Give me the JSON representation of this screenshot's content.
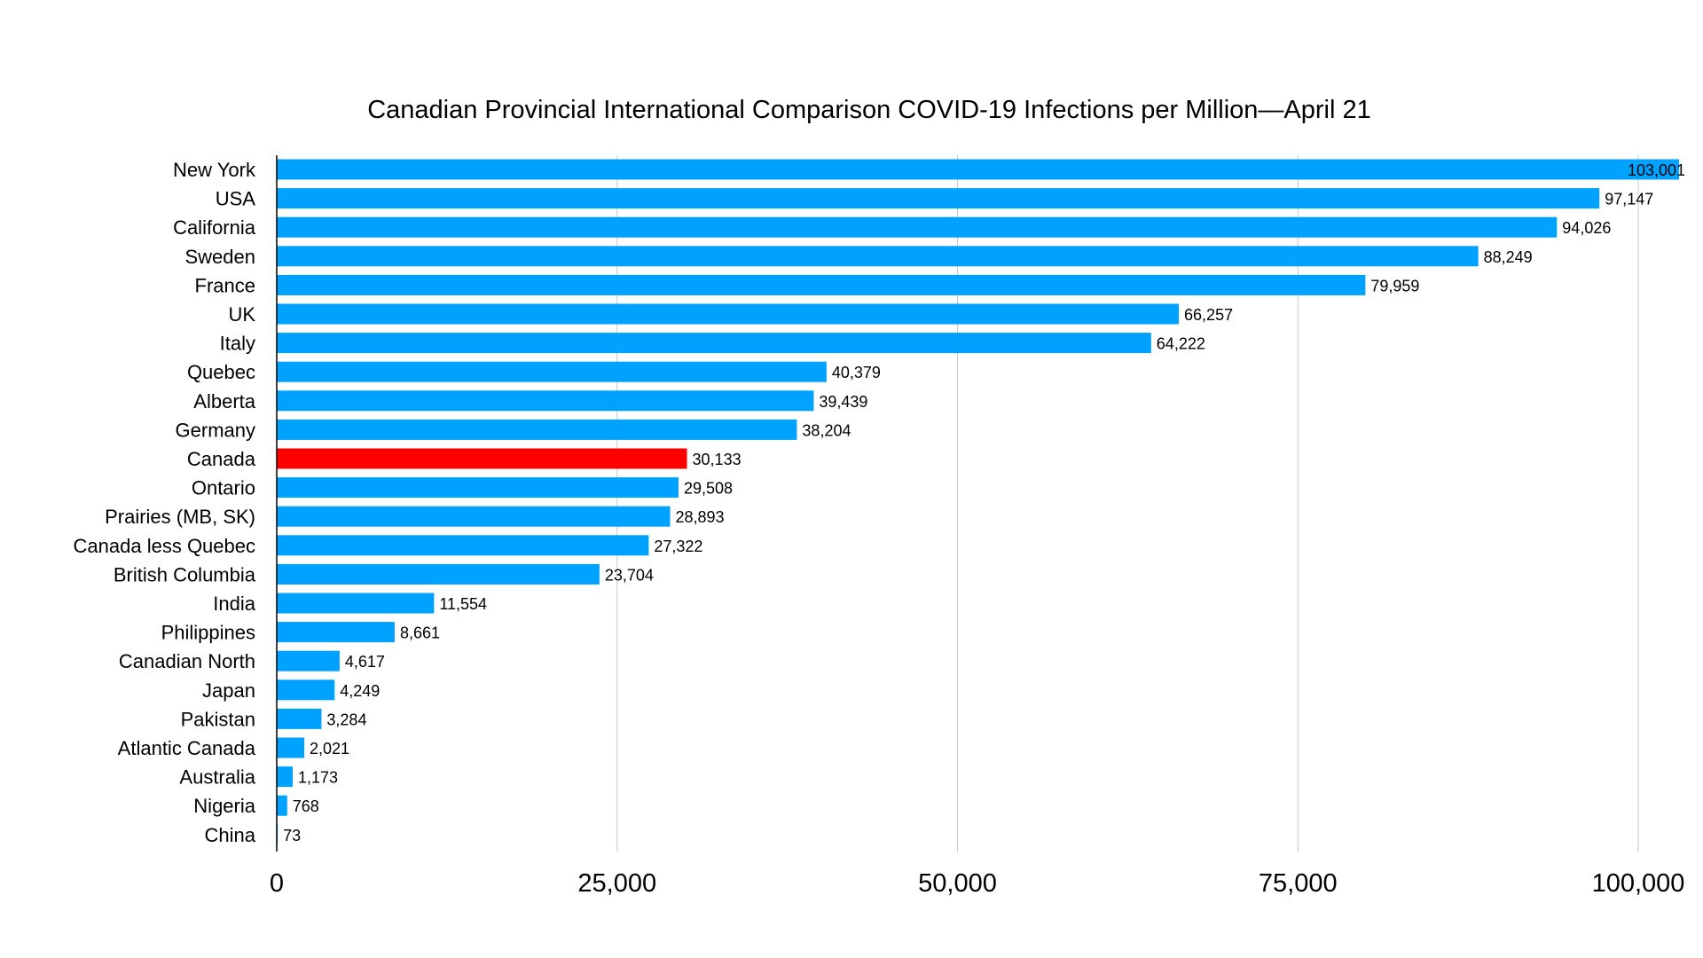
{
  "chart_data": {
    "type": "bar",
    "orientation": "horizontal",
    "title": "Canadian Provincial International Comparison COVID-19 Infections per Million—April 21",
    "xlabel": "",
    "ylabel": "",
    "xlim": [
      0,
      100000
    ],
    "xticks": [
      "0",
      "25,000",
      "50,000",
      "75,000",
      "100,000"
    ],
    "xtick_values": [
      0,
      25000,
      50000,
      75000,
      100000
    ],
    "grid": "vertical",
    "legend": "none",
    "colors": {
      "default": "#00A2FF",
      "highlight": "#FF0000"
    },
    "categories": [
      "New York",
      "USA",
      "California",
      "Sweden",
      "France",
      "UK",
      "Italy",
      "Quebec",
      "Alberta",
      "Germany",
      "Canada",
      "Ontario",
      "Prairies (MB, SK)",
      "Canada less Quebec",
      "British Columbia",
      "India",
      "Philippines",
      "Canadian North",
      "Japan",
      "Pakistan",
      "Atlantic Canada",
      "Australia",
      "Nigeria",
      "China"
    ],
    "values": [
      103001,
      97147,
      94026,
      88249,
      79959,
      66257,
      64222,
      40379,
      39439,
      38204,
      30133,
      29508,
      28893,
      27322,
      23704,
      11554,
      8661,
      4617,
      4249,
      3284,
      2021,
      1173,
      768,
      73
    ],
    "value_labels": [
      "103,001",
      "97,147",
      "94,026",
      "88,249",
      "79,959",
      "66,257",
      "64,222",
      "40,379",
      "39,439",
      "38,204",
      "30,133",
      "29,508",
      "28,893",
      "27,322",
      "23,704",
      "11,554",
      "8,661",
      "4,617",
      "4,249",
      "3,284",
      "2,021",
      "1,173",
      "768",
      "73"
    ],
    "highlight_category": "Canada"
  }
}
